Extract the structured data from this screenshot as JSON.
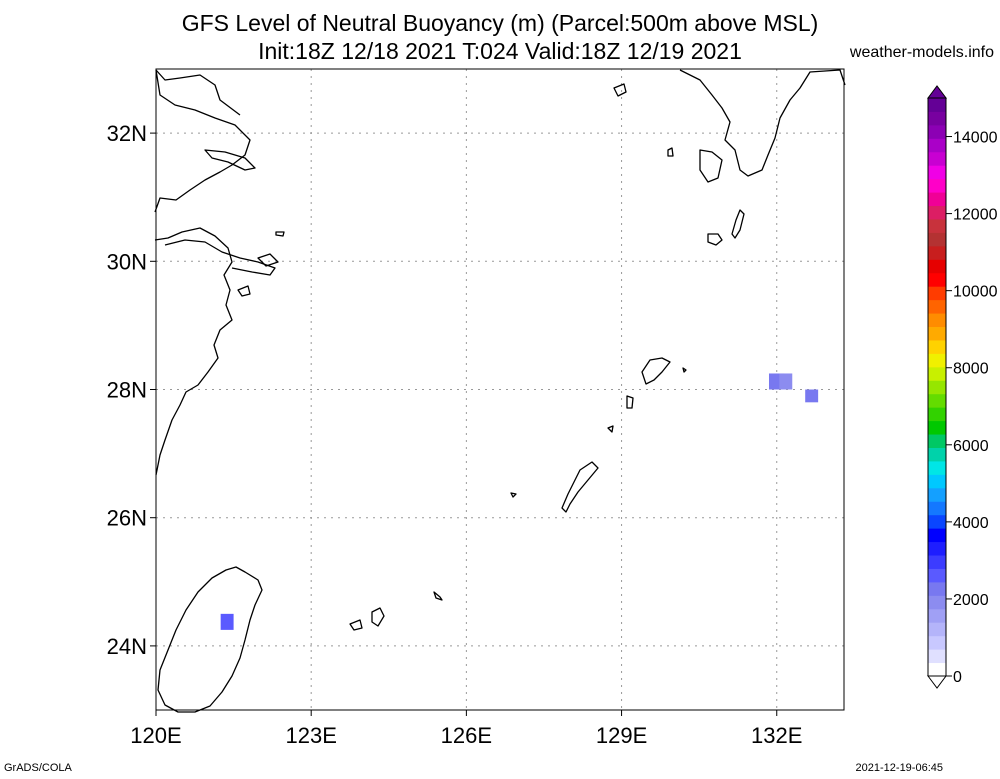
{
  "title": {
    "line1": "GFS Level of Neutral Buoyancy (m) (Parcel:500m above MSL)",
    "line2": "Init:18Z 12/18 2021 T:024 Valid:18Z 12/19 2021"
  },
  "site": "weather-models.info",
  "footer": {
    "left": "GrADS/COLA",
    "right": "2021-12-19-06:45"
  },
  "map": {
    "lon_range": [
      120,
      133.3
    ],
    "lat_range": [
      23,
      33
    ],
    "lon_ticks": [
      {
        "value": 120,
        "label": "120E"
      },
      {
        "value": 123,
        "label": "123E"
      },
      {
        "value": 126,
        "label": "126E"
      },
      {
        "value": 129,
        "label": "129E"
      },
      {
        "value": 132,
        "label": "132E"
      }
    ],
    "lat_ticks": [
      {
        "value": 24,
        "label": "24N"
      },
      {
        "value": 26,
        "label": "26N"
      },
      {
        "value": 28,
        "label": "28N"
      },
      {
        "value": 30,
        "label": "30N"
      },
      {
        "value": 32,
        "label": "32N"
      }
    ],
    "grid": true
  },
  "colorbar": {
    "min": 0,
    "max": 15000,
    "labels": [
      "0",
      "2000",
      "4000",
      "6000",
      "8000",
      "10000",
      "12000",
      "14000"
    ],
    "colors": [
      "#ffffff",
      "#e0e0ff",
      "#c8c8ff",
      "#b4b4fa",
      "#a0a0f5",
      "#8c8cf0",
      "#7878f0",
      "#5a5aff",
      "#3c3cff",
      "#1e1eff",
      "#0000ff",
      "#0a46ff",
      "#1478ff",
      "#14a0ff",
      "#00c8ff",
      "#00e6e6",
      "#00d2aa",
      "#00c864",
      "#00c800",
      "#32d200",
      "#64dc00",
      "#96e600",
      "#c8f000",
      "#f0f000",
      "#ffd200",
      "#ffaa00",
      "#ff8c00",
      "#ff6400",
      "#ff3c00",
      "#ff0000",
      "#e60000",
      "#c81e1e",
      "#b43232",
      "#c8323c",
      "#dc1e64",
      "#f00096",
      "#ff00c8",
      "#f000e6",
      "#c800d2",
      "#aa00c8",
      "#8c00b4",
      "#7800a0",
      "#640096"
    ]
  },
  "field_cells": [
    {
      "lon_range": [
        131.85,
        132.15
      ],
      "lat_range": [
        28.0,
        28.25
      ],
      "value": 2200
    },
    {
      "lon_range": [
        132.05,
        132.3
      ],
      "lat_range": [
        28.0,
        28.25
      ],
      "value": 2000
    },
    {
      "lon_range": [
        132.55,
        132.8
      ],
      "lat_range": [
        27.8,
        28.0
      ],
      "value": 2100
    },
    {
      "lon_range": [
        121.25,
        121.5
      ],
      "lat_range": [
        24.25,
        24.5
      ],
      "value": 2600
    }
  ]
}
